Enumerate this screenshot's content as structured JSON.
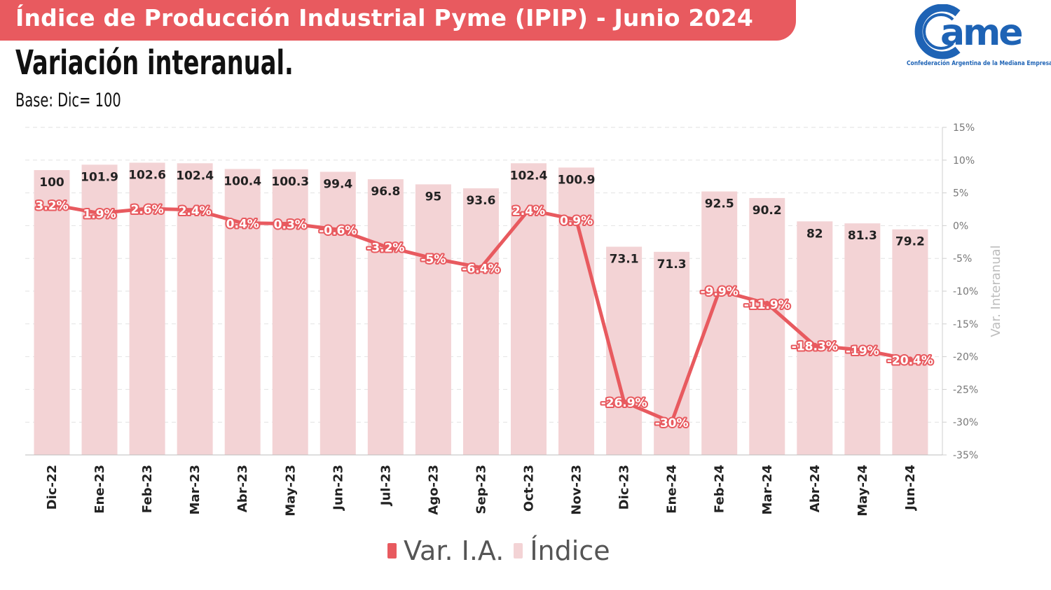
{
  "header": {
    "title": "Índice de Producción Industrial Pyme (IPIP) - Junio 2024",
    "subtitle": "Variación interanual.",
    "base": "Base: Dic= 100"
  },
  "logo": {
    "letters": "ame",
    "caption": "Confederación Argentina de la Mediana Empresa",
    "color": "#1e63b5"
  },
  "legend": {
    "items": [
      {
        "label": "Var. I.A.",
        "color": "#e85a5f"
      },
      {
        "label": "Índice",
        "color": "#f3d3d5"
      }
    ]
  },
  "chart_data": {
    "type": "bar",
    "categories": [
      "Dic-22",
      "Ene-23",
      "Feb-23",
      "Mar-23",
      "Abr-23",
      "May-23",
      "Jun-23",
      "Jul-23",
      "Ago-23",
      "Sep-23",
      "Oct-23",
      "Nov-23",
      "Dic-23",
      "Ene-24",
      "Feb-24",
      "Mar-24",
      "Abr-24",
      "May-24",
      "Jun-24"
    ],
    "series": [
      {
        "name": "Índice",
        "type": "bar",
        "color": "#f3d3d5",
        "values": [
          100,
          101.9,
          102.6,
          102.4,
          100.4,
          100.3,
          99.4,
          96.8,
          95,
          93.6,
          102.4,
          100.9,
          73.1,
          71.3,
          92.5,
          90.2,
          82,
          81.3,
          79.2
        ],
        "labels": [
          "100",
          "101.9",
          "102.6",
          "102.4",
          "100.4",
          "100.3",
          "99.4",
          "96.8",
          "95",
          "93.6",
          "102.4",
          "100.9",
          "73.1",
          "71.3",
          "92.5",
          "90.2",
          "82",
          "81.3",
          "79.2"
        ]
      },
      {
        "name": "Var. I.A.",
        "type": "line",
        "color": "#e85a5f",
        "values": [
          3.2,
          1.9,
          2.6,
          2.4,
          0.4,
          0.3,
          -0.6,
          -3.2,
          -5,
          -6.4,
          2.4,
          0.9,
          -26.9,
          -30,
          -9.9,
          -11.9,
          -18.3,
          -19,
          -20.4
        ],
        "labels": [
          "3.2%",
          "1.9%",
          "2.6%",
          "2.4%",
          "0.4%",
          "0.3%",
          "-0.6%",
          "-3.2%",
          "-5%",
          "-6.4%",
          "2.4%",
          "0.9%",
          "-26.9%",
          "-30%",
          "-9.9%",
          "-11.9%",
          "-18.3%",
          "-19%",
          "-20.4%"
        ]
      }
    ],
    "y_right": {
      "label": "Var. Interanual",
      "range": [
        -35,
        15
      ],
      "ticks": [
        "15%",
        "10%",
        "5%",
        "0%",
        "-5%",
        "-10%",
        "-15%",
        "-20%",
        "-25%",
        "-30%",
        "-35%"
      ]
    },
    "y_left_range": [
      0,
      115
    ],
    "grid": true,
    "legend_position": "bottom"
  }
}
